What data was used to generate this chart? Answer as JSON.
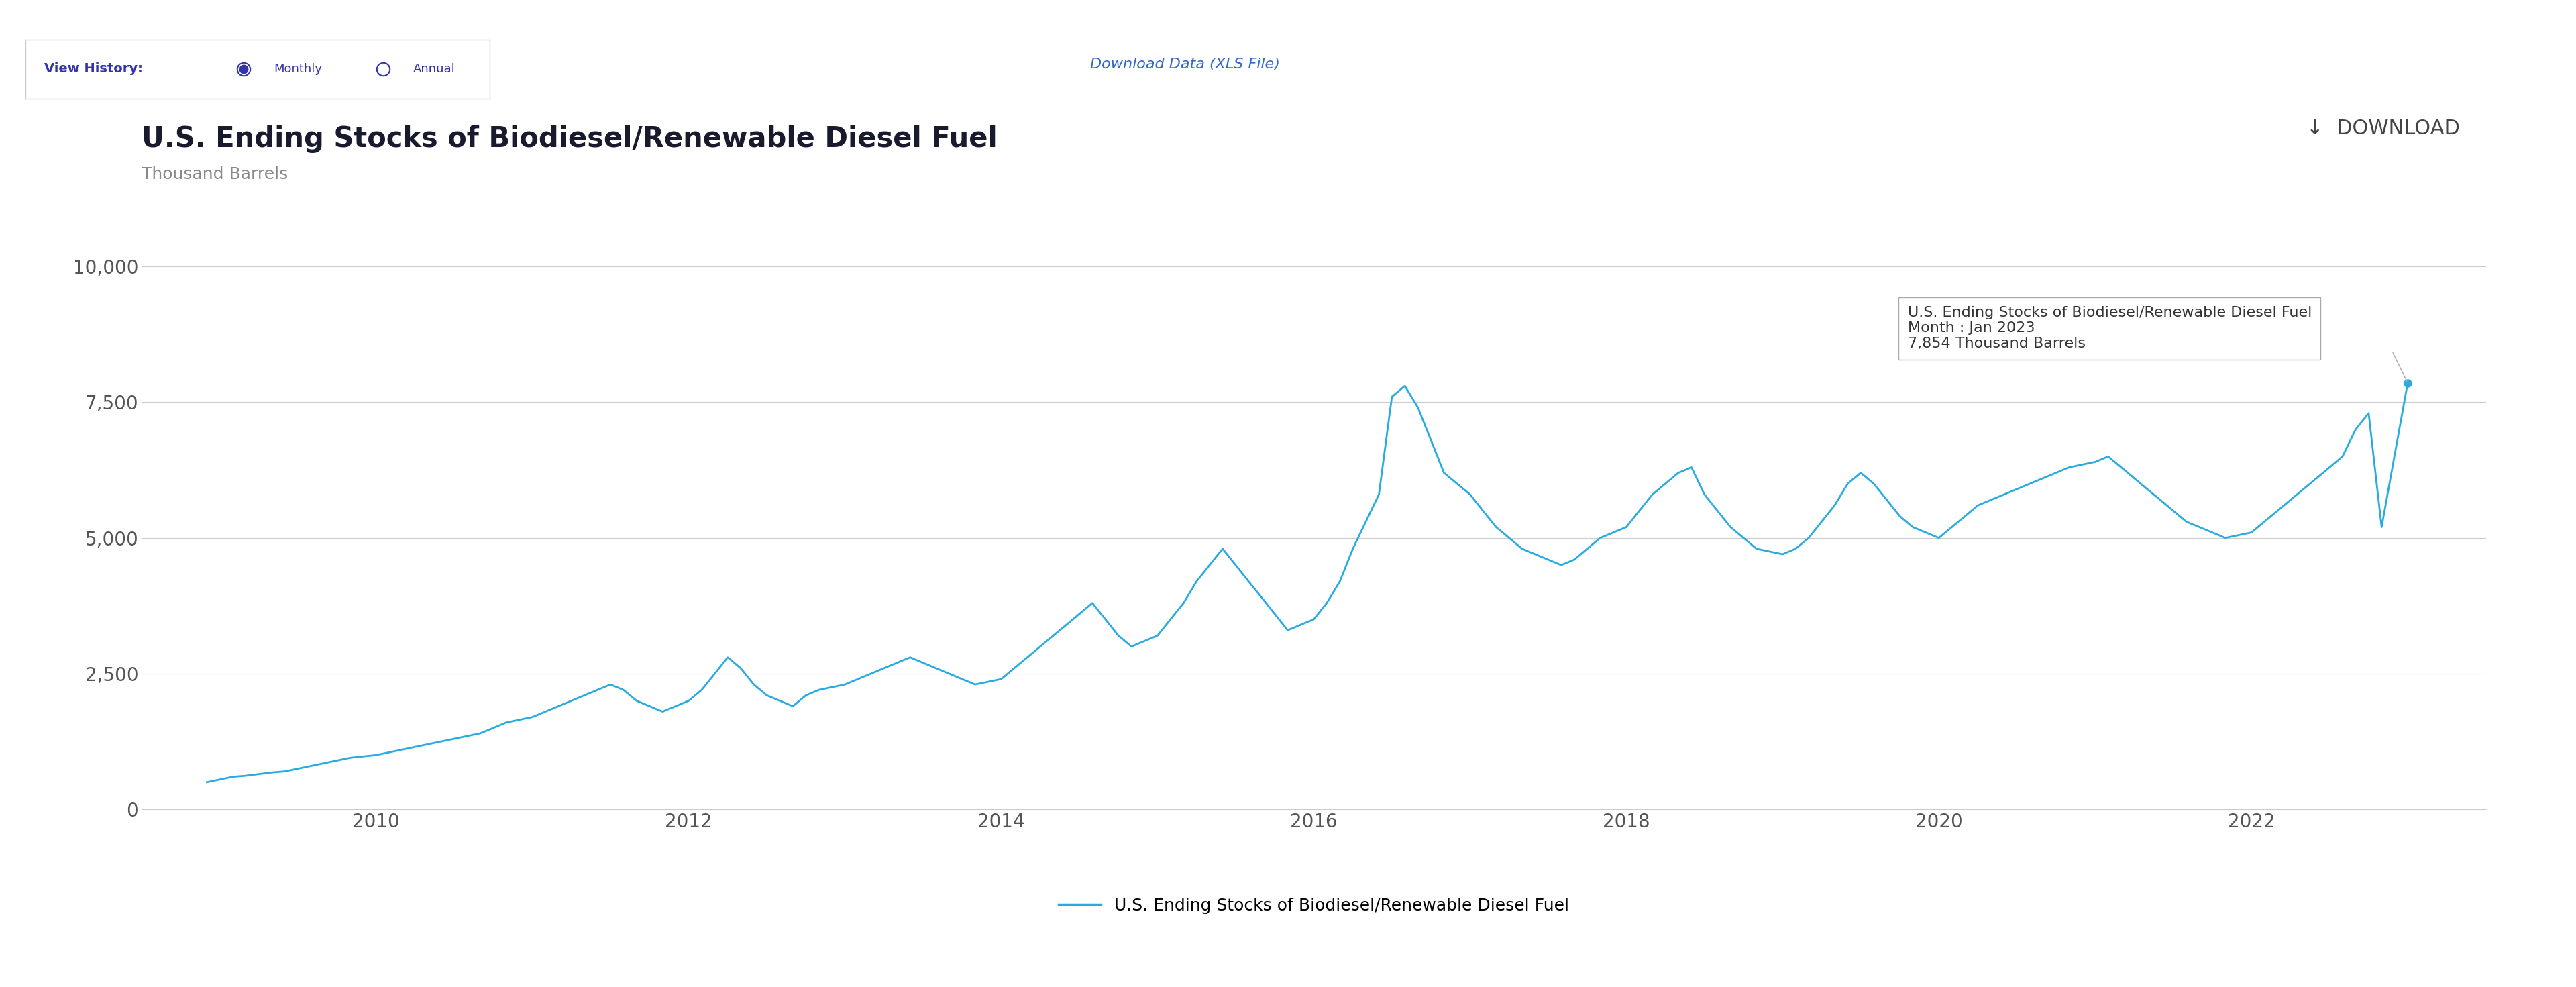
{
  "title": "U.S. Ending Stocks of Biodiesel/Renewable Diesel Fuel",
  "ylabel": "Thousand Barrels",
  "line_label": "U.S. Ending Stocks of Biodiesel/Renewable Diesel Fuel",
  "line_color": "#29ABE2",
  "tooltip_title": "U.S. Ending Stocks of Biodiesel/Renewable Diesel Fuel",
  "tooltip_month": "Month : Jan 2023",
  "tooltip_value": "7,854 Thousand Barrels",
  "tooltip_point_value": 7854,
  "tooltip_point_x": 2023.0,
  "download_text": "↓  DOWNLOAD",
  "view_history_text": "View History:",
  "monthly_text": "Monthly",
  "annual_text": "Annual",
  "download_link": "Download Data (XLS File)",
  "background_color": "#ffffff",
  "ylim": [
    0,
    10000
  ],
  "yticks": [
    0,
    2500,
    5000,
    7500,
    10000
  ],
  "ytick_labels": [
    "0",
    "2,500",
    "5,000",
    "7,500",
    "10,000"
  ],
  "xlim_start": 2008.5,
  "xlim_end": 2023.5,
  "xtick_years": [
    2010,
    2012,
    2014,
    2016,
    2018,
    2020,
    2022
  ],
  "data_x": [
    2008.917,
    2009.0,
    2009.083,
    2009.167,
    2009.25,
    2009.333,
    2009.417,
    2009.5,
    2009.583,
    2009.667,
    2009.75,
    2009.833,
    2010.0,
    2010.083,
    2010.167,
    2010.25,
    2010.333,
    2010.417,
    2010.5,
    2010.583,
    2010.667,
    2010.75,
    2010.833,
    2011.0,
    2011.083,
    2011.167,
    2011.25,
    2011.333,
    2011.417,
    2011.5,
    2011.583,
    2011.667,
    2011.75,
    2011.833,
    2012.0,
    2012.083,
    2012.167,
    2012.25,
    2012.333,
    2012.417,
    2012.5,
    2012.583,
    2012.667,
    2012.75,
    2012.833,
    2013.0,
    2013.083,
    2013.167,
    2013.25,
    2013.333,
    2013.417,
    2013.5,
    2013.583,
    2013.667,
    2013.75,
    2013.833,
    2014.0,
    2014.083,
    2014.167,
    2014.25,
    2014.333,
    2014.417,
    2014.5,
    2014.583,
    2014.667,
    2014.75,
    2014.833,
    2015.0,
    2015.083,
    2015.167,
    2015.25,
    2015.333,
    2015.417,
    2015.5,
    2015.583,
    2015.667,
    2015.75,
    2015.833,
    2016.0,
    2016.083,
    2016.167,
    2016.25,
    2016.333,
    2016.417,
    2016.5,
    2016.583,
    2016.667,
    2016.75,
    2016.833,
    2017.0,
    2017.083,
    2017.167,
    2017.25,
    2017.333,
    2017.417,
    2017.5,
    2017.583,
    2017.667,
    2017.75,
    2017.833,
    2018.0,
    2018.083,
    2018.167,
    2018.25,
    2018.333,
    2018.417,
    2018.5,
    2018.583,
    2018.667,
    2018.75,
    2018.833,
    2019.0,
    2019.083,
    2019.167,
    2019.25,
    2019.333,
    2019.417,
    2019.5,
    2019.583,
    2019.667,
    2019.75,
    2019.833,
    2020.0,
    2020.083,
    2020.167,
    2020.25,
    2020.333,
    2020.417,
    2020.5,
    2020.583,
    2020.667,
    2020.75,
    2020.833,
    2021.0,
    2021.083,
    2021.167,
    2021.25,
    2021.333,
    2021.417,
    2021.5,
    2021.583,
    2021.667,
    2021.75,
    2021.833,
    2022.0,
    2022.083,
    2022.167,
    2022.25,
    2022.333,
    2022.417,
    2022.5,
    2022.583,
    2022.667,
    2022.75,
    2022.833,
    2023.0
  ],
  "data_y": [
    500,
    550,
    600,
    620,
    650,
    680,
    700,
    750,
    800,
    850,
    900,
    950,
    1000,
    1050,
    1100,
    1150,
    1200,
    1250,
    1300,
    1350,
    1400,
    1500,
    1600,
    1700,
    1800,
    1900,
    2000,
    2100,
    2200,
    2300,
    2200,
    2000,
    1900,
    1800,
    2000,
    2200,
    2500,
    2800,
    2600,
    2300,
    2100,
    2000,
    1900,
    2100,
    2200,
    2300,
    2400,
    2500,
    2600,
    2700,
    2800,
    2700,
    2600,
    2500,
    2400,
    2300,
    2400,
    2600,
    2800,
    3000,
    3200,
    3400,
    3600,
    3800,
    3500,
    3200,
    3000,
    3200,
    3500,
    3800,
    4200,
    4500,
    4800,
    4500,
    4200,
    3900,
    3600,
    3300,
    3500,
    3800,
    4200,
    4800,
    5300,
    5800,
    7600,
    7800,
    7400,
    6800,
    6200,
    5800,
    5500,
    5200,
    5000,
    4800,
    4700,
    4600,
    4500,
    4600,
    4800,
    5000,
    5200,
    5500,
    5800,
    6000,
    6200,
    6300,
    5800,
    5500,
    5200,
    5000,
    4800,
    4700,
    4800,
    5000,
    5300,
    5600,
    6000,
    6200,
    6000,
    5700,
    5400,
    5200,
    5000,
    5200,
    5400,
    5600,
    5700,
    5800,
    5900,
    6000,
    6100,
    6200,
    6300,
    6400,
    6500,
    6300,
    6100,
    5900,
    5700,
    5500,
    5300,
    5200,
    5100,
    5000,
    5100,
    5300,
    5500,
    5700,
    5900,
    6100,
    6300,
    6500,
    7000,
    7300,
    5200,
    7854
  ]
}
